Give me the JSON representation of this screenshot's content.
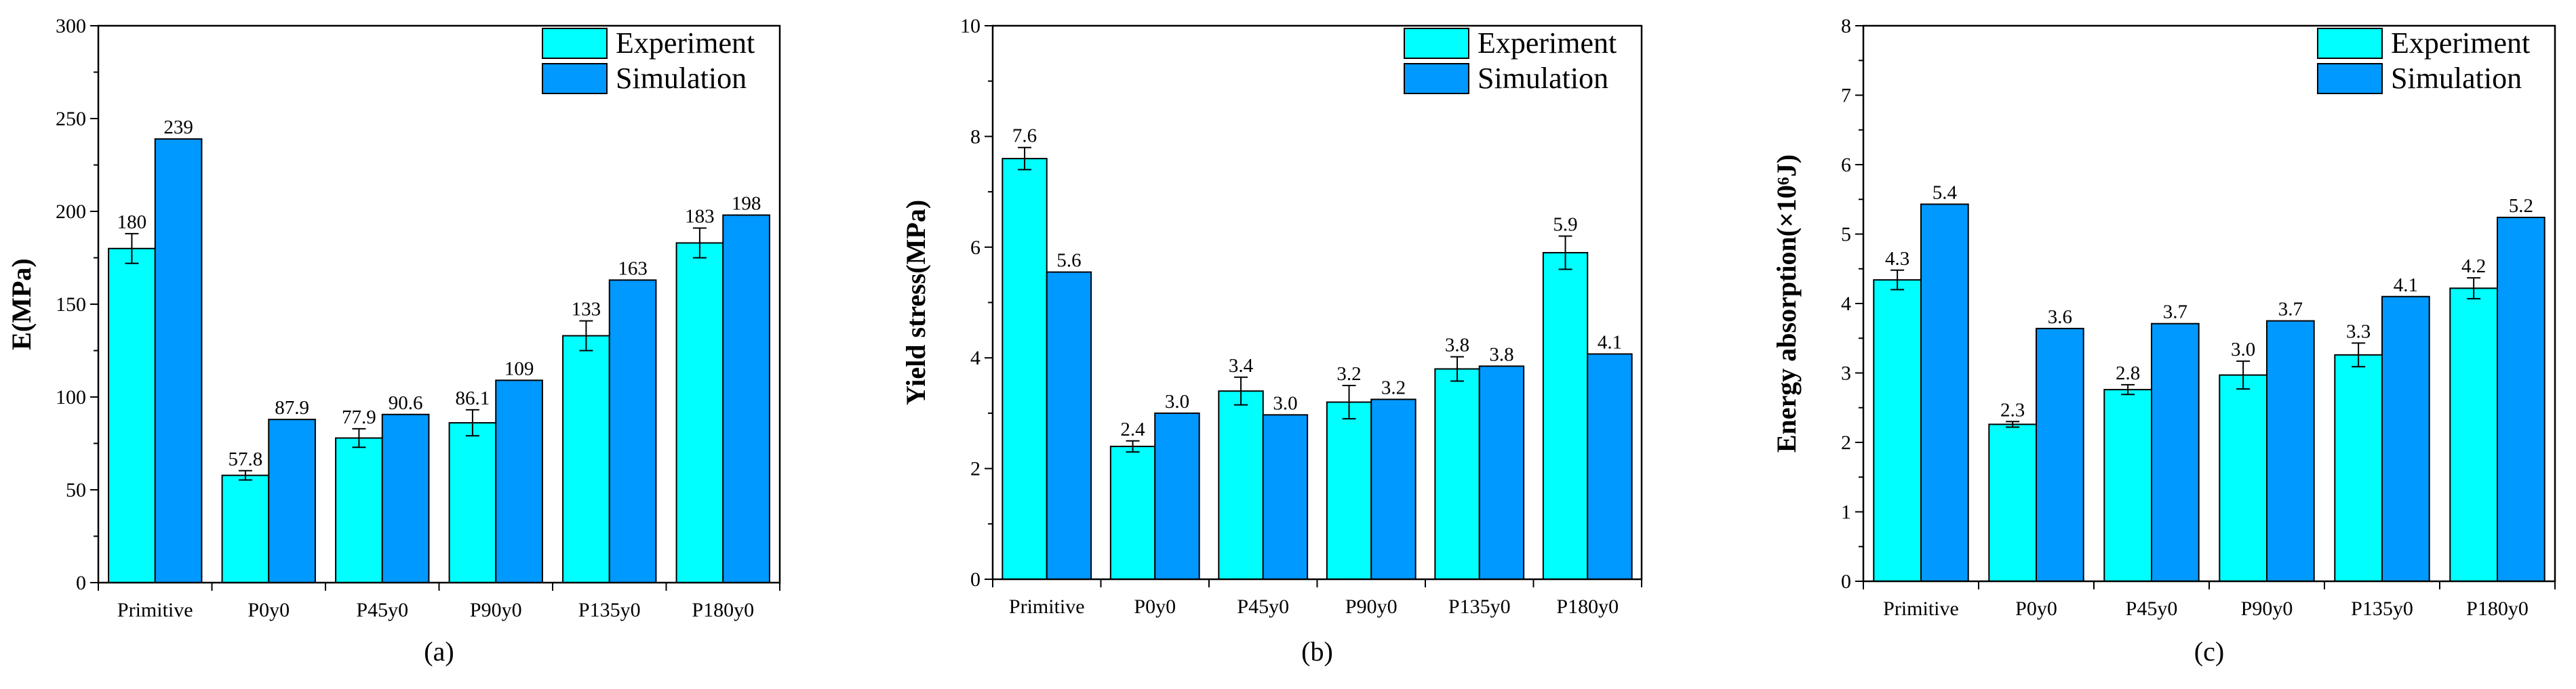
{
  "colors": {
    "experiment": "#00FFFF",
    "simulation": "#0099FF"
  },
  "charts": [
    {
      "type": "bar",
      "caption": "(a)",
      "ylabel": "E(MPa)",
      "ylim": [
        0,
        300
      ],
      "yticks": [
        0,
        50,
        100,
        150,
        200,
        250,
        300
      ],
      "categories": [
        "Primitive",
        "P0y0",
        "P45y0",
        "P90y0",
        "P135y0",
        "P180y0"
      ],
      "legend_position": "top-right",
      "series": [
        {
          "name": "Experiment",
          "values": [
            180,
            57.8,
            77.9,
            86.1,
            133,
            183
          ],
          "errors": [
            8,
            2.5,
            5,
            7,
            8,
            8
          ],
          "labels": [
            "180",
            "57.8",
            "77.9",
            "86.1",
            "133",
            "183"
          ]
        },
        {
          "name": "Simulation",
          "values": [
            239,
            87.9,
            90.6,
            109,
            163,
            198
          ],
          "errors": [
            0,
            0,
            0,
            0,
            0,
            0
          ],
          "labels": [
            "239",
            "87.9",
            "90.6",
            "109",
            "163",
            "198"
          ]
        }
      ]
    },
    {
      "type": "bar",
      "caption": "(b)",
      "ylabel": "Yield stress(MPa)",
      "ylim": [
        0,
        10
      ],
      "yticks": [
        0,
        2,
        4,
        6,
        8,
        10
      ],
      "categories": [
        "Primitive",
        "P0y0",
        "P45y0",
        "P90y0",
        "P135y0",
        "P180y0"
      ],
      "legend_position": "top-right",
      "series": [
        {
          "name": "Experiment",
          "values": [
            7.6,
            2.4,
            3.4,
            3.2,
            3.8,
            5.9
          ],
          "errors": [
            0.2,
            0.1,
            0.25,
            0.3,
            0.22,
            0.3
          ],
          "labels": [
            "7.6",
            "2.4",
            "3.4",
            "3.2",
            "3.8",
            "5.9"
          ]
        },
        {
          "name": "Simulation",
          "values": [
            5.55,
            3.0,
            2.97,
            3.25,
            3.85,
            4.07
          ],
          "errors": [
            0,
            0,
            0,
            0,
            0,
            0
          ],
          "labels": [
            "5.6",
            "3.0",
            "3.0",
            "3.2",
            "3.8",
            "4.1"
          ]
        }
      ]
    },
    {
      "type": "bar",
      "caption": "(c)",
      "ylabel": "Energy absorption(×10⁶J)",
      "ylim": [
        0,
        8
      ],
      "yticks": [
        0,
        1,
        2,
        3,
        4,
        5,
        6,
        7,
        8
      ],
      "categories": [
        "Primitive",
        "P0y0",
        "P45y0",
        "P90y0",
        "P135y0",
        "P180y0"
      ],
      "legend_position": "top-right",
      "series": [
        {
          "name": "Experiment",
          "values": [
            4.34,
            2.26,
            2.76,
            2.97,
            3.26,
            4.22
          ],
          "errors": [
            0.14,
            0.04,
            0.07,
            0.2,
            0.17,
            0.15
          ],
          "labels": [
            "4.3",
            "2.3",
            "2.8",
            "3.0",
            "3.3",
            "4.2"
          ]
        },
        {
          "name": "Simulation",
          "values": [
            5.43,
            3.64,
            3.71,
            3.75,
            4.1,
            5.24
          ],
          "errors": [
            0,
            0,
            0,
            0,
            0,
            0
          ],
          "labels": [
            "5.4",
            "3.6",
            "3.7",
            "3.7",
            "4.1",
            "5.2"
          ]
        }
      ]
    }
  ]
}
